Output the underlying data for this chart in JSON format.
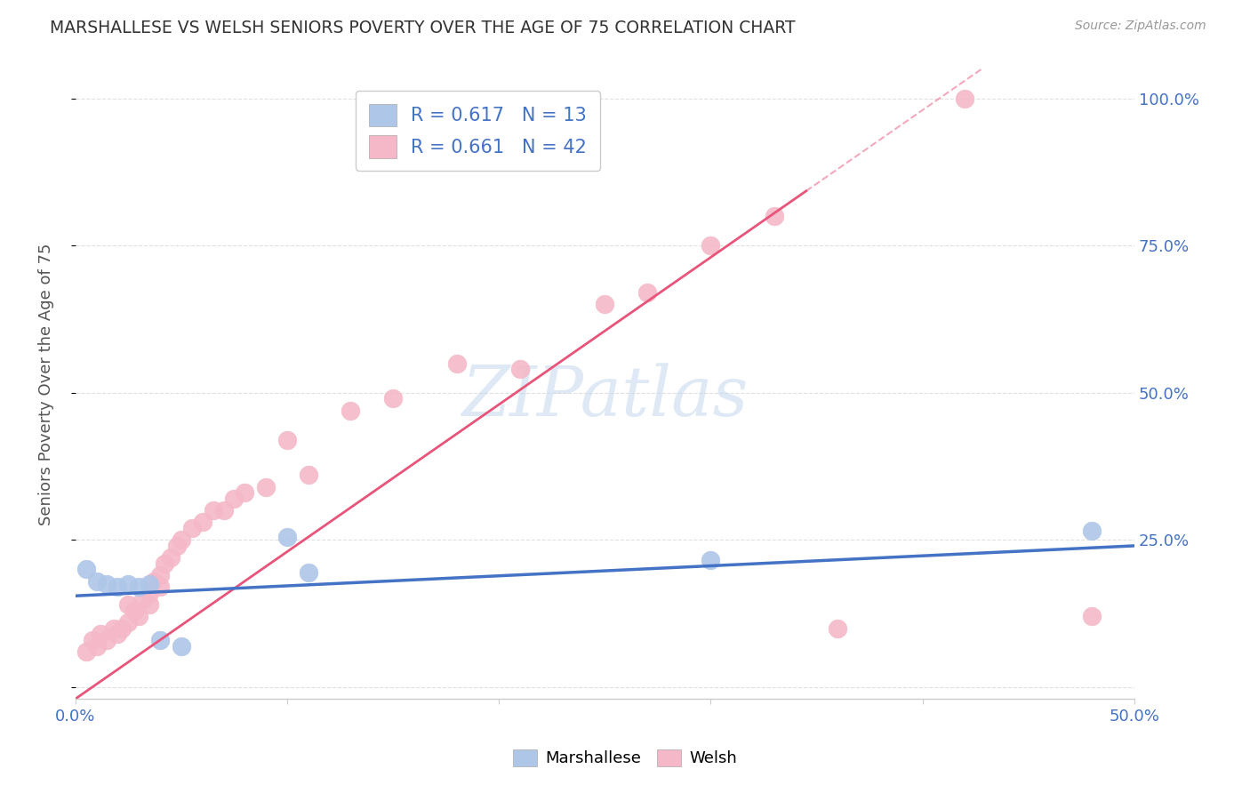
{
  "title": "MARSHALLESE VS WELSH SENIORS POVERTY OVER THE AGE OF 75 CORRELATION CHART",
  "source": "Source: ZipAtlas.com",
  "ylabel": "Seniors Poverty Over the Age of 75",
  "xlim": [
    0.0,
    0.5
  ],
  "ylim": [
    -0.02,
    1.05
  ],
  "background_color": "#ffffff",
  "grid_color": "#e0e0e0",
  "marshallese_color": "#aec6e8",
  "welsh_color": "#f4b8c8",
  "marshallese_line_color": "#4472c4",
  "welsh_line_color": "#e8547a",
  "marshallese_R": 0.617,
  "marshallese_N": 13,
  "welsh_R": 0.661,
  "welsh_N": 42,
  "marshallese_x": [
    0.005,
    0.01,
    0.015,
    0.02,
    0.025,
    0.03,
    0.035,
    0.04,
    0.05,
    0.1,
    0.11,
    0.3,
    0.48
  ],
  "marshallese_y": [
    0.2,
    0.18,
    0.175,
    0.17,
    0.175,
    0.17,
    0.175,
    0.08,
    0.07,
    0.255,
    0.195,
    0.215,
    0.265
  ],
  "welsh_x": [
    0.005,
    0.008,
    0.01,
    0.012,
    0.015,
    0.018,
    0.02,
    0.022,
    0.025,
    0.025,
    0.028,
    0.03,
    0.032,
    0.035,
    0.035,
    0.037,
    0.04,
    0.04,
    0.042,
    0.045,
    0.048,
    0.05,
    0.055,
    0.06,
    0.065,
    0.07,
    0.075,
    0.08,
    0.09,
    0.1,
    0.11,
    0.13,
    0.15,
    0.18,
    0.21,
    0.25,
    0.27,
    0.3,
    0.33,
    0.36,
    0.42,
    0.48
  ],
  "welsh_y": [
    0.06,
    0.08,
    0.07,
    0.09,
    0.08,
    0.1,
    0.09,
    0.1,
    0.11,
    0.14,
    0.13,
    0.12,
    0.15,
    0.14,
    0.16,
    0.18,
    0.17,
    0.19,
    0.21,
    0.22,
    0.24,
    0.25,
    0.27,
    0.28,
    0.3,
    0.3,
    0.32,
    0.33,
    0.34,
    0.42,
    0.36,
    0.47,
    0.49,
    0.55,
    0.54,
    0.65,
    0.67,
    0.75,
    0.8,
    0.1,
    1.0,
    0.12
  ],
  "legend_label_marshallese": "Marshallese",
  "legend_label_welsh": "Welsh"
}
